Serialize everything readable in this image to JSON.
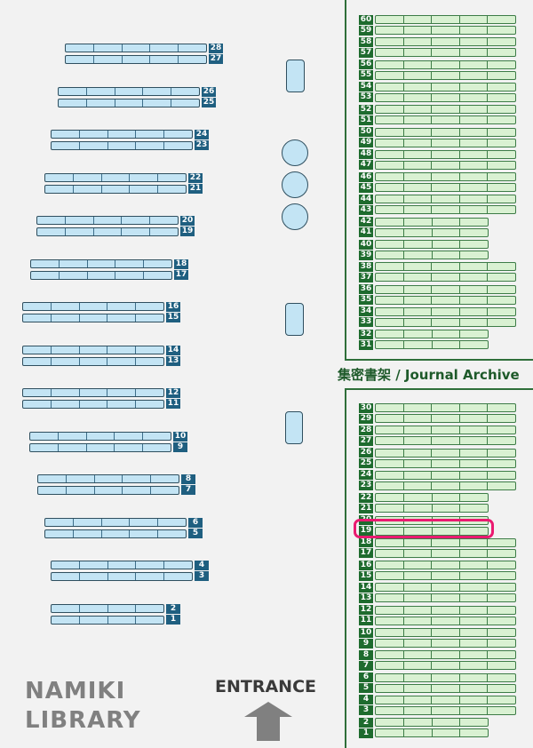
{
  "title": "NAMIKI LIBRARY",
  "library_name_lines": [
    "NAMIKI",
    "LIBRARY"
  ],
  "entrance_label": "ENTRANCE",
  "archive_label": "集密書架 / Journal Archive",
  "highlighted_shelf": "19",
  "colors": {
    "general_shelf": "#c3e4f4",
    "general_label": "#1f5f80",
    "archive_shelf": "#d9f1d2",
    "archive_label": "#1e6b2e",
    "highlight": "#ea1a70",
    "entrance_arrow": "#808080"
  },
  "general_shelves": [
    {
      "numbers": [
        "28",
        "27"
      ],
      "segments": 5
    },
    {
      "numbers": [
        "26",
        "25"
      ],
      "segments": 5
    },
    {
      "numbers": [
        "24",
        "23"
      ],
      "segments": 5
    },
    {
      "numbers": [
        "22",
        "21"
      ],
      "segments": 5
    },
    {
      "numbers": [
        "20",
        "19"
      ],
      "segments": 5
    },
    {
      "numbers": [
        "18",
        "17"
      ],
      "segments": 5
    },
    {
      "numbers": [
        "16",
        "15"
      ],
      "segments": 5
    },
    {
      "numbers": [
        "14",
        "13"
      ],
      "segments": 5
    },
    {
      "numbers": [
        "12",
        "11"
      ],
      "segments": 5
    },
    {
      "numbers": [
        "10",
        "9"
      ],
      "segments": 5
    },
    {
      "numbers": [
        "8",
        "7"
      ],
      "segments": 5
    },
    {
      "numbers": [
        "6",
        "5"
      ],
      "segments": 5
    },
    {
      "numbers": [
        "4",
        "3"
      ],
      "segments": 5
    },
    {
      "numbers": [
        "2",
        "1"
      ],
      "segments": 4
    }
  ],
  "archive_upper": [
    {
      "numbers": [
        "60",
        "59"
      ],
      "segments": 5
    },
    {
      "numbers": [
        "58",
        "57"
      ],
      "segments": 5
    },
    {
      "numbers": [
        "56",
        "55"
      ],
      "segments": 5
    },
    {
      "numbers": [
        "54",
        "53"
      ],
      "segments": 5
    },
    {
      "numbers": [
        "52",
        "51"
      ],
      "segments": 5
    },
    {
      "numbers": [
        "50",
        "49"
      ],
      "segments": 5
    },
    {
      "numbers": [
        "48",
        "47"
      ],
      "segments": 5
    },
    {
      "numbers": [
        "46",
        "45"
      ],
      "segments": 5
    },
    {
      "numbers": [
        "44",
        "43"
      ],
      "segments": 5
    },
    {
      "numbers": [
        "42",
        "41"
      ],
      "segments": 4
    },
    {
      "numbers": [
        "40",
        "39"
      ],
      "segments": 4
    },
    {
      "numbers": [
        "38",
        "37"
      ],
      "segments": 5
    },
    {
      "numbers": [
        "36",
        "35"
      ],
      "segments": 5
    },
    {
      "numbers": [
        "34",
        "33"
      ],
      "segments": 5
    },
    {
      "numbers": [
        "32",
        "31"
      ],
      "segments": 4
    }
  ],
  "archive_lower": [
    {
      "numbers": [
        "30",
        "29"
      ],
      "segments": 5
    },
    {
      "numbers": [
        "28",
        "27"
      ],
      "segments": 5
    },
    {
      "numbers": [
        "26",
        "25"
      ],
      "segments": 5
    },
    {
      "numbers": [
        "24",
        "23"
      ],
      "segments": 5
    },
    {
      "numbers": [
        "22",
        "21"
      ],
      "segments": 4
    },
    {
      "numbers": [
        "20",
        "19"
      ],
      "segments": 4
    },
    {
      "numbers": [
        "18",
        "17"
      ],
      "segments": 5
    },
    {
      "numbers": [
        "16",
        "15"
      ],
      "segments": 5
    },
    {
      "numbers": [
        "14",
        "13"
      ],
      "segments": 5
    },
    {
      "numbers": [
        "12",
        "11"
      ],
      "segments": 5
    },
    {
      "numbers": [
        "10",
        "9"
      ],
      "segments": 5
    },
    {
      "numbers": [
        "8",
        "7"
      ],
      "segments": 5
    },
    {
      "numbers": [
        "6",
        "5"
      ],
      "segments": 5
    },
    {
      "numbers": [
        "4",
        "3"
      ],
      "segments": 5
    },
    {
      "numbers": [
        "2",
        "1"
      ],
      "segments": 4
    }
  ],
  "furniture": [
    {
      "type": "table"
    },
    {
      "type": "round-table"
    },
    {
      "type": "round-table"
    },
    {
      "type": "round-table"
    },
    {
      "type": "table"
    },
    {
      "type": "table"
    }
  ]
}
